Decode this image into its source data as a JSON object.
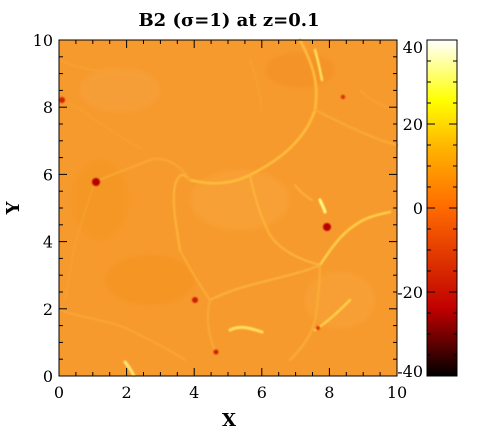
{
  "chart_data": {
    "type": "heatmap",
    "title": "B2 (σ=1) at z=0.1",
    "xlabel": "X",
    "ylabel": "Y",
    "xlim": [
      0,
      10
    ],
    "ylim": [
      0,
      10
    ],
    "x_ticks": [
      "0",
      "2",
      "4",
      "6",
      "8",
      "10"
    ],
    "y_ticks": [
      "0",
      "2",
      "4",
      "6",
      "8",
      "10"
    ],
    "colorbar": {
      "range": [
        -40,
        40
      ],
      "ticks": [
        "40",
        "20",
        "0",
        "-20",
        "-40"
      ],
      "tick_values": [
        40,
        20,
        0,
        -20,
        -40
      ],
      "colormap": "hot",
      "stops": [
        "#000000",
        "#c00000",
        "#ff6a00",
        "#ffb400",
        "#ffff00",
        "#ffffff"
      ]
    },
    "background_color": "#f79a2e",
    "grid": false,
    "legend": "none"
  }
}
